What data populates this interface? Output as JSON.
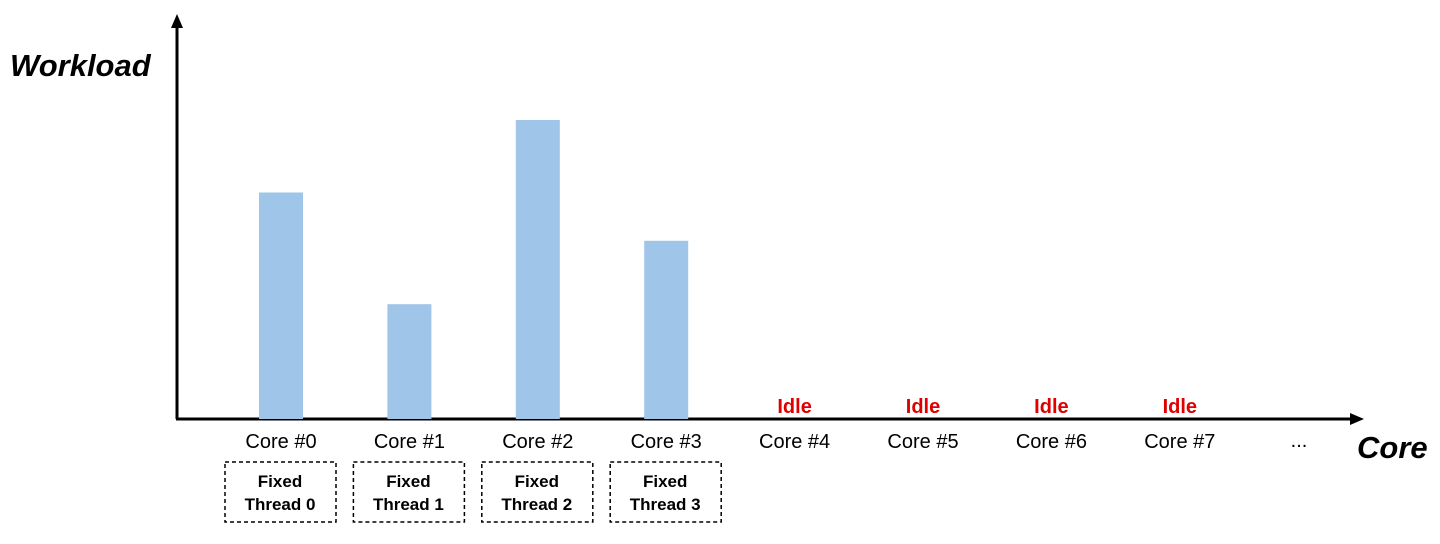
{
  "chart_data": {
    "type": "bar",
    "xlabel": "Core",
    "ylabel": "Workload",
    "categories": [
      "Core #0",
      "Core #1",
      "Core #2",
      "Core #3",
      "Core #4",
      "Core #5",
      "Core #6",
      "Core #7"
    ],
    "values": [
      75,
      38,
      99,
      59,
      0,
      0,
      0,
      0
    ],
    "ylim": [
      0,
      100
    ],
    "bar_color": "#9FC5E8",
    "axis_color": "#000000",
    "idle_color": "#E00000",
    "grid": false,
    "idle_label": "Idle",
    "idle_categories": [
      "Core #4",
      "Core #5",
      "Core #6",
      "Core #7"
    ],
    "thread_boxes": [
      {
        "category": "Core #0",
        "line1": "Fixed",
        "line2": "Thread 0"
      },
      {
        "category": "Core #1",
        "line1": "Fixed",
        "line2": "Thread 1"
      },
      {
        "category": "Core #2",
        "line1": "Fixed",
        "line2": "Thread 2"
      },
      {
        "category": "Core #3",
        "line1": "Fixed",
        "line2": "Thread 3"
      }
    ],
    "ellipsis": "..."
  }
}
